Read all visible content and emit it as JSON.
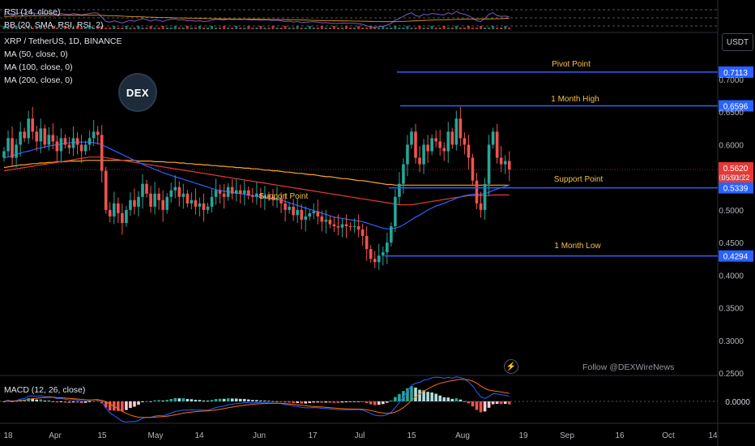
{
  "header": {
    "rsi_label": "RSI (14, close)",
    "bb_label": "BB (20, SMA, RSI, RSI, 2)",
    "symbol": "XRP / TetherUS, 1D, BINANCE",
    "ma_labels": [
      "MA (50, close, 0)",
      "MA (100, close, 0)",
      "MA (200, close, 0)"
    ],
    "logo_text": "DEX",
    "currency": "USDT"
  },
  "annotations": {
    "pivot_point": "Pivot Point",
    "month_high": "1 Month High",
    "support_point_right": "Support Point",
    "support_point_left": "Support Point",
    "month_low": "1 Month Low",
    "follow": "Follow @DEXWireNews"
  },
  "macd": {
    "label": "MACD (12, 26, close)",
    "zero_label": "0.0000"
  },
  "colors": {
    "up": "#26a69a",
    "down": "#ef5350",
    "ma50": "#2962ff",
    "ma100": "#e53935",
    "ma200": "#f9a825",
    "level": "#2962ff",
    "level_text": "#f5c242",
    "price_tag": "#e53935"
  },
  "chart_data": {
    "type": "candlestick",
    "price_axis": {
      "ticks": [
        "0.7000",
        "0.6500",
        "0.6000",
        "0.5500",
        "0.5000",
        "0.4500",
        "0.4000",
        "0.3500",
        "0.3000",
        "0.2500"
      ],
      "ylim": [
        0.25,
        0.7
      ]
    },
    "time_axis": [
      "18",
      "Apr",
      "15",
      "May",
      "14",
      "Jun",
      "17",
      "Jul",
      "15",
      "Aug",
      "19",
      "Sep",
      "16",
      "Oct",
      "14"
    ],
    "last_price": "0.5620",
    "countdown": "05:01:22",
    "levels": [
      {
        "name": "pivot",
        "value": 0.7113,
        "label": "0.7113"
      },
      {
        "name": "month-high",
        "value": 0.6596,
        "label": "0.6596"
      },
      {
        "name": "support",
        "value": 0.5339,
        "label": "0.5339"
      },
      {
        "name": "month-low",
        "value": 0.4294,
        "label": "0.4294"
      }
    ],
    "closes": [
      0.59,
      0.61,
      0.58,
      0.6,
      0.62,
      0.61,
      0.64,
      0.62,
      0.605,
      0.625,
      0.6,
      0.615,
      0.605,
      0.59,
      0.61,
      0.6,
      0.595,
      0.61,
      0.6,
      0.59,
      0.6,
      0.61,
      0.62,
      0.615,
      0.56,
      0.5,
      0.49,
      0.51,
      0.495,
      0.48,
      0.5,
      0.515,
      0.505,
      0.52,
      0.54,
      0.525,
      0.505,
      0.525,
      0.515,
      0.5,
      0.52,
      0.53,
      0.535,
      0.52,
      0.525,
      0.51,
      0.515,
      0.505,
      0.51,
      0.5,
      0.505,
      0.52,
      0.53,
      0.525,
      0.52,
      0.535,
      0.525,
      0.53,
      0.525,
      0.53,
      0.522,
      0.52,
      0.525,
      0.518,
      0.522,
      0.52,
      0.515,
      0.518,
      0.51,
      0.5,
      0.505,
      0.492,
      0.5,
      0.485,
      0.49,
      0.495,
      0.498,
      0.49,
      0.482,
      0.485,
      0.478,
      0.475,
      0.473,
      0.478,
      0.475,
      0.474,
      0.475,
      0.47,
      0.46,
      0.44,
      0.425,
      0.42,
      0.43,
      0.435,
      0.45,
      0.475,
      0.52,
      0.54,
      0.57,
      0.6,
      0.62,
      0.58,
      0.57,
      0.6,
      0.59,
      0.61,
      0.605,
      0.595,
      0.59,
      0.62,
      0.6,
      0.64,
      0.61,
      0.6,
      0.58,
      0.545,
      0.51,
      0.5,
      0.54,
      0.6,
      0.62,
      0.58,
      0.57,
      0.575,
      0.562
    ],
    "ma50": [
      0.58,
      0.581,
      0.583,
      0.585,
      0.587,
      0.589,
      0.59,
      0.592,
      0.594,
      0.595,
      0.597,
      0.598,
      0.599,
      0.6,
      0.601,
      0.602,
      0.603,
      0.603,
      0.604,
      0.604,
      0.604,
      0.604,
      0.603,
      0.602,
      0.6,
      0.597,
      0.594,
      0.591,
      0.588,
      0.585,
      0.582,
      0.579,
      0.576,
      0.573,
      0.57,
      0.567,
      0.565,
      0.562,
      0.56,
      0.557,
      0.555,
      0.553,
      0.551,
      0.549,
      0.547,
      0.545,
      0.543,
      0.541,
      0.539,
      0.537,
      0.535,
      0.533,
      0.531,
      0.53,
      0.529,
      0.528,
      0.527,
      0.526,
      0.525,
      0.524,
      0.523,
      0.522,
      0.521,
      0.52,
      0.519,
      0.518,
      0.517,
      0.516,
      0.515,
      0.513,
      0.511,
      0.509,
      0.507,
      0.505,
      0.503,
      0.501,
      0.499,
      0.497,
      0.495,
      0.493,
      0.491,
      0.489,
      0.488,
      0.487,
      0.486,
      0.485,
      0.484,
      0.483,
      0.482,
      0.48,
      0.478,
      0.476,
      0.474,
      0.472,
      0.471,
      0.471,
      0.472,
      0.474,
      0.477,
      0.481,
      0.485,
      0.489,
      0.492,
      0.496,
      0.5,
      0.503,
      0.506,
      0.508,
      0.51,
      0.513,
      0.515,
      0.518,
      0.52,
      0.522,
      0.523,
      0.524,
      0.524,
      0.524,
      0.525,
      0.527,
      0.53,
      0.532,
      0.534,
      0.536,
      0.538
    ],
    "ma100": [
      0.56,
      0.561,
      0.562,
      0.563,
      0.564,
      0.565,
      0.566,
      0.567,
      0.568,
      0.569,
      0.57,
      0.571,
      0.572,
      0.573,
      0.574,
      0.575,
      0.576,
      0.577,
      0.578,
      0.579,
      0.58,
      0.581,
      0.581,
      0.581,
      0.581,
      0.58,
      0.579,
      0.578,
      0.577,
      0.576,
      0.575,
      0.574,
      0.573,
      0.572,
      0.571,
      0.57,
      0.569,
      0.568,
      0.567,
      0.566,
      0.565,
      0.564,
      0.563,
      0.562,
      0.561,
      0.56,
      0.559,
      0.558,
      0.557,
      0.556,
      0.555,
      0.554,
      0.553,
      0.552,
      0.551,
      0.55,
      0.549,
      0.548,
      0.547,
      0.546,
      0.545,
      0.544,
      0.543,
      0.542,
      0.541,
      0.54,
      0.539,
      0.538,
      0.537,
      0.536,
      0.535,
      0.534,
      0.533,
      0.532,
      0.531,
      0.53,
      0.529,
      0.528,
      0.527,
      0.526,
      0.525,
      0.524,
      0.523,
      0.522,
      0.521,
      0.52,
      0.519,
      0.518,
      0.517,
      0.516,
      0.515,
      0.514,
      0.513,
      0.512,
      0.511,
      0.51,
      0.509,
      0.508,
      0.508,
      0.508,
      0.508,
      0.509,
      0.51,
      0.511,
      0.512,
      0.513,
      0.514,
      0.515,
      0.516,
      0.517,
      0.518,
      0.519,
      0.52,
      0.521,
      0.522,
      0.522,
      0.522,
      0.522,
      0.522,
      0.522,
      0.523,
      0.523,
      0.523,
      0.523,
      0.523
    ],
    "ma200": [
      0.565,
      0.566,
      0.567,
      0.568,
      0.569,
      0.569,
      0.57,
      0.571,
      0.571,
      0.572,
      0.572,
      0.573,
      0.573,
      0.574,
      0.574,
      0.574,
      0.575,
      0.575,
      0.575,
      0.575,
      0.576,
      0.576,
      0.576,
      0.576,
      0.576,
      0.576,
      0.576,
      0.576,
      0.576,
      0.576,
      0.576,
      0.576,
      0.576,
      0.575,
      0.575,
      0.575,
      0.575,
      0.574,
      0.574,
      0.574,
      0.573,
      0.573,
      0.573,
      0.572,
      0.572,
      0.571,
      0.571,
      0.57,
      0.57,
      0.569,
      0.569,
      0.568,
      0.568,
      0.567,
      0.567,
      0.566,
      0.566,
      0.565,
      0.565,
      0.564,
      0.564,
      0.563,
      0.563,
      0.562,
      0.561,
      0.561,
      0.56,
      0.56,
      0.559,
      0.558,
      0.558,
      0.557,
      0.556,
      0.556,
      0.555,
      0.554,
      0.554,
      0.553,
      0.552,
      0.551,
      0.551,
      0.55,
      0.549,
      0.548,
      0.548,
      0.547,
      0.546,
      0.545,
      0.545,
      0.544,
      0.543,
      0.542,
      0.541,
      0.54,
      0.539,
      0.539,
      0.538,
      0.538,
      0.538,
      0.538,
      0.538,
      0.538,
      0.538,
      0.538,
      0.538,
      0.538,
      0.538,
      0.538,
      0.538,
      0.538,
      0.538,
      0.538,
      0.538,
      0.538,
      0.538,
      0.538,
      0.538,
      0.538,
      0.538,
      0.538,
      0.538,
      0.538,
      0.538,
      0.538,
      0.538
    ]
  }
}
